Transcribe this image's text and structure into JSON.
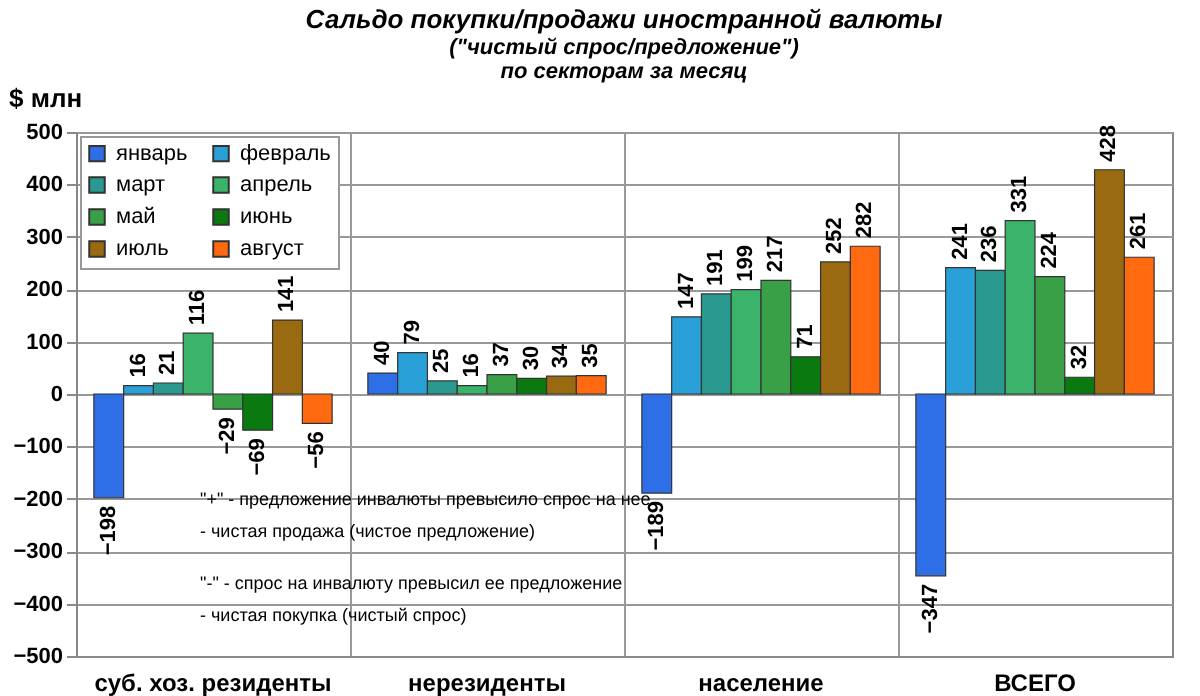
{
  "chart_data": {
    "type": "bar",
    "title": "Сальдо покупки/продажи  иностранной валюты",
    "subtitle": "(\"чистый спрос/предложение\")\nпо секторам за месяц",
    "ylabel": "$ млн",
    "categories": [
      "суб. хоз. резиденты",
      "нерезиденты",
      "население",
      "ВСЕГО"
    ],
    "series": [
      {
        "name": "январь",
        "color": "#2e6fe8",
        "values": [
          -198,
          40,
          -189,
          -347
        ]
      },
      {
        "name": "февраль",
        "color": "#2aa0d8",
        "values": [
          16,
          79,
          147,
          241
        ]
      },
      {
        "name": "март",
        "color": "#2a9a90",
        "values": [
          21,
          25,
          191,
          236
        ]
      },
      {
        "name": "апрель",
        "color": "#3cb36a",
        "values": [
          116,
          16,
          199,
          331
        ]
      },
      {
        "name": "май",
        "color": "#3aa048",
        "values": [
          -29,
          37,
          217,
          224
        ]
      },
      {
        "name": "июнь",
        "color": "#0a7a10",
        "values": [
          -69,
          30,
          71,
          32
        ]
      },
      {
        "name": "июль",
        "color": "#9a6a10",
        "values": [
          141,
          34,
          252,
          428
        ]
      },
      {
        "name": "август",
        "color": "#ff6a10",
        "values": [
          -56,
          35,
          282,
          261
        ]
      }
    ],
    "ylim": [
      -500,
      500
    ],
    "yticks": [
      -500,
      -400,
      -300,
      -200,
      -100,
      0,
      100,
      200,
      300,
      400,
      500
    ],
    "grid": true,
    "legend": "top left",
    "data_labels": true,
    "annotations": [
      "\"+\" - предложение инвалюты превысило спрос  на нее",
      "- чистая продажа  (чистое предложение)",
      "\"-\" - спрос  на инвалюту превысил ее предложение",
      "- чистая покупка  (чистый спрос)"
    ]
  }
}
